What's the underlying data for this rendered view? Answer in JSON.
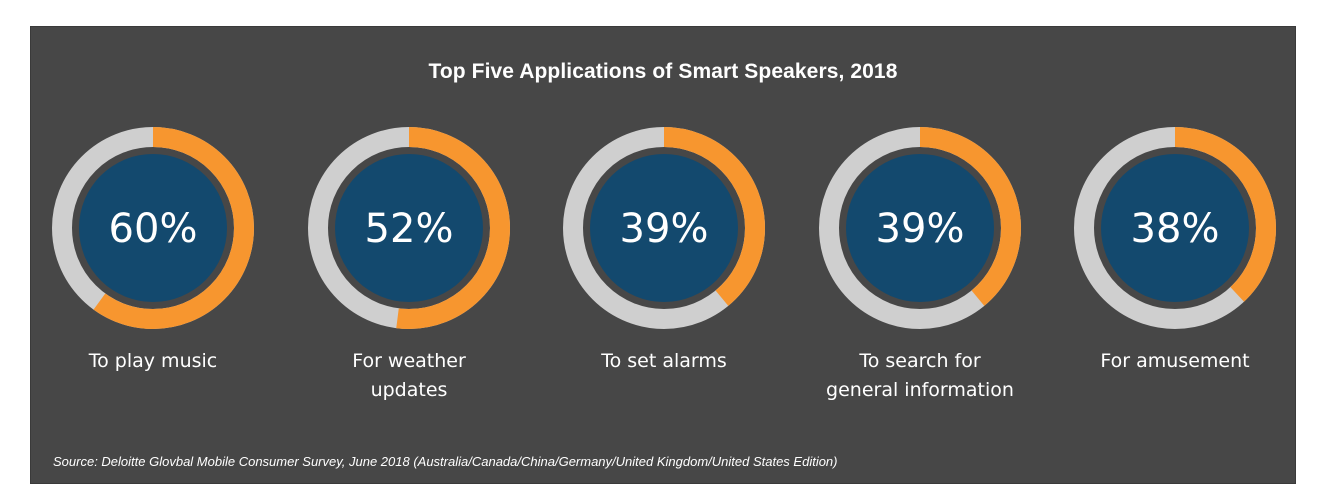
{
  "chart_data": {
    "type": "donut",
    "title": "Top Five Applications of Smart Speakers, 2018",
    "categories": [
      "To play music",
      "For weather\nupdates",
      "To set alarms",
      "To search for\ngeneral information",
      "For amusement"
    ],
    "values": [
      60,
      52,
      39,
      39,
      38
    ],
    "value_labels": [
      "60%",
      "52%",
      "39%",
      "39%",
      "38%"
    ],
    "unit": "%",
    "colors": {
      "background": "#474747",
      "ring_filled": "#F7962F",
      "ring_remaining": "#CFCFCF",
      "center": "#13496E",
      "text": "#FFFFFF"
    }
  },
  "source": "Source: Deloitte Glovbal Mobile Consumer Survey, June 2018 (Australia/Canada/China/Germany/United Kingdom/United States Edition)"
}
